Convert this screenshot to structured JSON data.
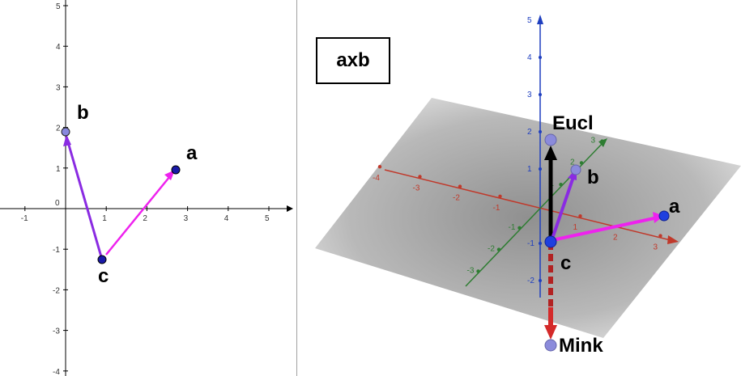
{
  "graphics2d": {
    "x_ticks": [
      "-1",
      "0",
      "1",
      "2",
      "3",
      "4",
      "5"
    ],
    "y_ticks": [
      "5",
      "4",
      "3",
      "2",
      "1",
      "0",
      "-1",
      "-2",
      "-3",
      "-4"
    ],
    "points": {
      "a": {
        "label": "a",
        "x": 2.7,
        "y": 0.95
      },
      "b": {
        "label": "b",
        "x": -0.15,
        "y": 1.9
      },
      "c": {
        "label": "c",
        "x": 0.85,
        "y": -1.25
      }
    },
    "colors": {
      "vector_cb": "#8a2be2",
      "vector_ca": "#ee22ee",
      "point_a": "#1a1aa8",
      "point_b": "#8888dd",
      "point_c": "#1a1aa8"
    }
  },
  "graphics3d": {
    "title": "axb",
    "labels": {
      "eucl": "Eucl",
      "mink": "Mink",
      "a": "a",
      "b": "b",
      "c": "c"
    },
    "x_ticks": [
      "-4",
      "-3",
      "-2",
      "-1",
      "1",
      "2",
      "3"
    ],
    "y_ticks": [
      "-3",
      "-2",
      "-1",
      "1",
      "2",
      "3"
    ],
    "z_ticks": [
      "5",
      "4",
      "3",
      "2",
      "1",
      "-1",
      "-2"
    ],
    "colors": {
      "x_axis": "#c0392b",
      "y_axis": "#2e7d32",
      "z_axis": "#1f3fbf",
      "eucl_vector": "#000000",
      "mink_vector": "#b22222",
      "vector_ca": "#ee22ee",
      "vector_cb": "#8a2be2"
    }
  }
}
